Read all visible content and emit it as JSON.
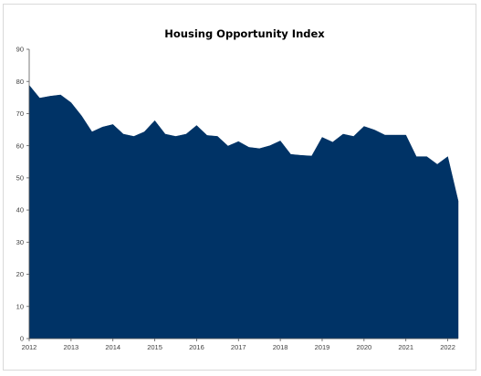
{
  "chart_data": {
    "type": "area",
    "title": "Housing Opportunity Index",
    "xlabel": "",
    "ylabel": "",
    "ylim": [
      0,
      90
    ],
    "y_ticks": [
      "0",
      "10",
      "20",
      "30",
      "40",
      "50",
      "60",
      "70",
      "80",
      "90"
    ],
    "x_ticks": [
      {
        "label": "2012",
        "year": 2012.0
      },
      {
        "label": "2013",
        "year": 2013.0
      },
      {
        "label": "2014",
        "year": 2014.0
      },
      {
        "label": "2015",
        "year": 2015.0
      },
      {
        "label": "2016",
        "year": 2016.0
      },
      {
        "label": "2017",
        "year": 2017.0
      },
      {
        "label": "2018",
        "year": 2018.0
      },
      {
        "label": "2019",
        "year": 2019.0
      },
      {
        "label": "2020",
        "year": 2020.0
      },
      {
        "label": "2021",
        "year": 2021.0
      },
      {
        "label": "2022",
        "year": 2022.0
      }
    ],
    "grid": false,
    "legend": "none",
    "color": "#003366",
    "series": [
      {
        "x": [
          2012.0,
          2012.25,
          2012.5,
          2012.75,
          2013.0,
          2013.25,
          2013.5,
          2013.75,
          2014.0,
          2014.25,
          2014.5,
          2014.75,
          2015.0,
          2015.25,
          2015.5,
          2015.75,
          2016.0,
          2016.25,
          2016.5,
          2016.75,
          2017.0,
          2017.25,
          2017.5,
          2017.75,
          2018.0,
          2018.25,
          2018.5,
          2018.75,
          2019.0,
          2019.25,
          2019.5,
          2019.75,
          2020.0,
          2020.25,
          2020.5,
          2020.75,
          2021.0,
          2021.25,
          2021.5,
          2021.75,
          2022.0,
          2022.25
        ],
        "values": [
          78.8,
          74.8,
          75.4,
          75.8,
          73.4,
          69.3,
          64.3,
          65.8,
          66.6,
          63.6,
          62.9,
          64.3,
          67.8,
          63.6,
          62.9,
          63.6,
          66.3,
          63.2,
          62.9,
          59.9,
          61.3,
          59.5,
          59.1,
          60.0,
          61.5,
          57.3,
          57.0,
          56.8,
          62.6,
          61.1,
          63.6,
          62.9,
          66.0,
          64.9,
          63.3,
          63.3,
          63.3,
          56.6,
          56.6,
          54.2,
          56.6,
          42.8
        ]
      }
    ]
  }
}
